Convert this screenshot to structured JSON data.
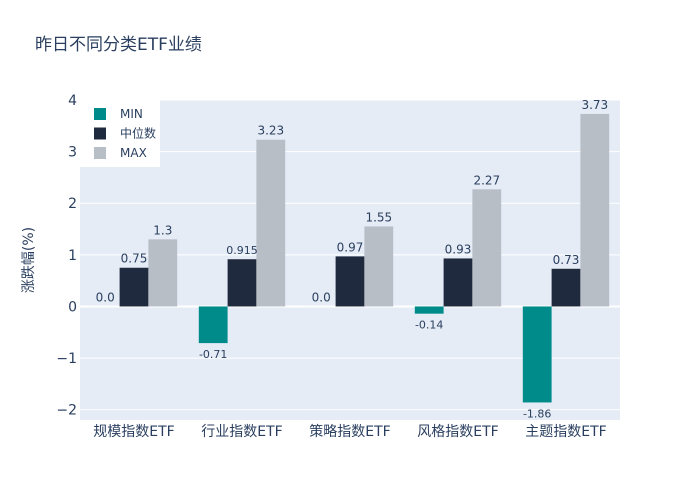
{
  "chart_data": {
    "type": "bar",
    "title": "昨日不同分类ETF业绩",
    "ylabel": "涨跌幅(%)",
    "xlabel": "",
    "categories": [
      "规模指数ETF",
      "行业指数ETF",
      "策略指数ETF",
      "风格指数ETF",
      "主题指数ETF"
    ],
    "series": [
      {
        "name": "MIN",
        "color": "#008b8b",
        "values": [
          0.0,
          -0.71,
          0.0,
          -0.14,
          -1.86
        ],
        "labels": [
          "0.0",
          "-0.71",
          "0.0",
          "-0.14",
          "-1.86"
        ]
      },
      {
        "name": "中位数",
        "color": "#1f2a3f",
        "values": [
          0.75,
          0.915,
          0.97,
          0.93,
          0.73
        ],
        "labels": [
          "0.75",
          "0.915",
          "0.97",
          "0.93",
          "0.73"
        ]
      },
      {
        "name": "MAX",
        "color": "#b8bec6",
        "values": [
          1.3,
          3.23,
          1.55,
          2.27,
          3.73
        ],
        "labels": [
          "1.3",
          "3.23",
          "1.55",
          "2.27",
          "3.73"
        ]
      }
    ],
    "ylim": [
      -2.2,
      4.0
    ],
    "yticks": [
      -2,
      -1,
      0,
      1,
      2,
      3,
      4
    ],
    "ytick_labels": [
      "−2",
      "−1",
      "0",
      "1",
      "2",
      "3",
      "4"
    ],
    "grid": true,
    "legend_position": "top-left",
    "plot_background": "#e5ecf6"
  }
}
